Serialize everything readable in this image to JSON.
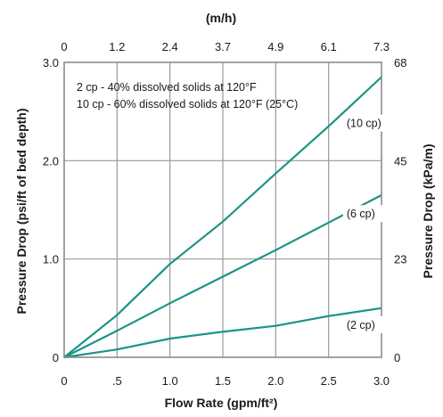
{
  "chart_data": {
    "type": "line",
    "title": "",
    "xlabel": "Flow Rate (gpm/ft²)",
    "ylabel": "Pressure Drop (psi/ft of bed depth)",
    "y2label": "Pressure Drop (kPa/m)",
    "x2label": "(m/h)",
    "xlim": [
      0,
      3.0
    ],
    "ylim": [
      0,
      3.0
    ],
    "x_ticks": [
      0,
      0.5,
      1.0,
      1.5,
      2.0,
      2.5,
      3.0
    ],
    "x_tick_labels": [
      "0",
      ".5",
      "1.0",
      "1.5",
      "2.0",
      "2.5",
      "3.0"
    ],
    "y_ticks": [
      0,
      1.0,
      2.0,
      3.0
    ],
    "y_tick_labels": [
      "0",
      "1.0",
      "2.0",
      "3.0"
    ],
    "x2_tick_labels": [
      "0",
      "1.2",
      "2.4",
      "3.7",
      "4.9",
      "6.1",
      "7.3"
    ],
    "y2_ticks": [
      0,
      1.0,
      2.0,
      3.0
    ],
    "y2_tick_labels": [
      "0",
      "23",
      "45",
      "68"
    ],
    "grid": true,
    "line_color": "#1a9486",
    "annotations": [
      "2 cp - 40% dissolved solids at 120°F",
      "10 cp - 60% dissolved solids at 120°F (25°C)"
    ],
    "series": [
      {
        "name": "(10 cp)",
        "x": [
          0,
          0.5,
          1.0,
          1.5,
          2.0,
          2.5,
          3.0
        ],
        "y": [
          0,
          0.43,
          0.95,
          1.38,
          1.87,
          2.35,
          2.85
        ]
      },
      {
        "name": "(6 cp)",
        "x": [
          0,
          0.5,
          1.0,
          1.5,
          2.0,
          2.5,
          3.0
        ],
        "y": [
          0,
          0.27,
          0.55,
          0.82,
          1.09,
          1.37,
          1.65
        ]
      },
      {
        "name": "(2 cp)",
        "x": [
          0,
          0.5,
          1.0,
          1.5,
          2.0,
          2.5,
          3.0
        ],
        "y": [
          0,
          0.08,
          0.19,
          0.26,
          0.32,
          0.42,
          0.5
        ]
      }
    ]
  }
}
